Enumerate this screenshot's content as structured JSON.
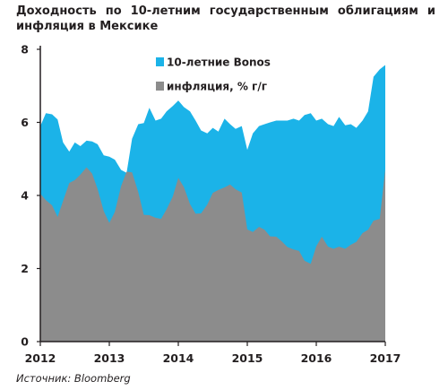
{
  "title": "Доходность по 10-летним государственным облигациям и инфляция в Мексике",
  "source": "Источник: Bloomberg",
  "chart_data": {
    "type": "area",
    "ylim": [
      0,
      8
    ],
    "y_ticks": [
      0,
      2,
      4,
      6,
      8
    ],
    "xlim": [
      2012,
      2017
    ],
    "x_ticks": [
      2012,
      2013,
      2014,
      2015,
      2016,
      2017
    ],
    "grid": false,
    "legend_position": "top-right",
    "series": [
      {
        "name": "10-летние Bonos",
        "color": "#1bb3e8",
        "points": [
          [
            2012.0,
            5.9
          ],
          [
            2012.08,
            6.25
          ],
          [
            2012.17,
            6.22
          ],
          [
            2012.25,
            6.08
          ],
          [
            2012.33,
            5.45
          ],
          [
            2012.42,
            5.2
          ],
          [
            2012.5,
            5.45
          ],
          [
            2012.58,
            5.35
          ],
          [
            2012.67,
            5.5
          ],
          [
            2012.75,
            5.48
          ],
          [
            2012.83,
            5.4
          ],
          [
            2012.92,
            5.1
          ],
          [
            2013.0,
            5.06
          ],
          [
            2013.08,
            4.98
          ],
          [
            2013.17,
            4.7
          ],
          [
            2013.25,
            4.62
          ],
          [
            2013.33,
            5.55
          ],
          [
            2013.42,
            5.95
          ],
          [
            2013.5,
            5.98
          ],
          [
            2013.58,
            6.4
          ],
          [
            2013.67,
            6.05
          ],
          [
            2013.75,
            6.1
          ],
          [
            2013.83,
            6.3
          ],
          [
            2013.92,
            6.45
          ],
          [
            2014.0,
            6.6
          ],
          [
            2014.08,
            6.42
          ],
          [
            2014.17,
            6.3
          ],
          [
            2014.25,
            6.05
          ],
          [
            2014.33,
            5.78
          ],
          [
            2014.42,
            5.7
          ],
          [
            2014.5,
            5.85
          ],
          [
            2014.58,
            5.75
          ],
          [
            2014.67,
            6.1
          ],
          [
            2014.75,
            5.95
          ],
          [
            2014.83,
            5.82
          ],
          [
            2014.92,
            5.9
          ],
          [
            2015.0,
            5.25
          ],
          [
            2015.08,
            5.7
          ],
          [
            2015.17,
            5.9
          ],
          [
            2015.25,
            5.95
          ],
          [
            2015.33,
            6.0
          ],
          [
            2015.42,
            6.05
          ],
          [
            2015.5,
            6.05
          ],
          [
            2015.58,
            6.05
          ],
          [
            2015.67,
            6.1
          ],
          [
            2015.75,
            6.05
          ],
          [
            2015.83,
            6.2
          ],
          [
            2015.92,
            6.25
          ],
          [
            2016.0,
            6.05
          ],
          [
            2016.08,
            6.1
          ],
          [
            2016.17,
            5.95
          ],
          [
            2016.25,
            5.9
          ],
          [
            2016.33,
            6.15
          ],
          [
            2016.42,
            5.92
          ],
          [
            2016.5,
            5.95
          ],
          [
            2016.58,
            5.85
          ],
          [
            2016.67,
            6.05
          ],
          [
            2016.75,
            6.3
          ],
          [
            2016.83,
            7.25
          ],
          [
            2016.92,
            7.45
          ],
          [
            2017.0,
            7.57
          ]
        ]
      },
      {
        "name": "инфляция, % г/г",
        "color": "#8c8c8c",
        "points": [
          [
            2012.0,
            4.05
          ],
          [
            2012.08,
            3.87
          ],
          [
            2012.17,
            3.73
          ],
          [
            2012.25,
            3.41
          ],
          [
            2012.33,
            3.85
          ],
          [
            2012.42,
            4.34
          ],
          [
            2012.5,
            4.42
          ],
          [
            2012.58,
            4.57
          ],
          [
            2012.67,
            4.77
          ],
          [
            2012.75,
            4.6
          ],
          [
            2012.83,
            4.18
          ],
          [
            2012.92,
            3.57
          ],
          [
            2013.0,
            3.25
          ],
          [
            2013.08,
            3.55
          ],
          [
            2013.17,
            4.25
          ],
          [
            2013.25,
            4.65
          ],
          [
            2013.33,
            4.63
          ],
          [
            2013.42,
            4.09
          ],
          [
            2013.5,
            3.47
          ],
          [
            2013.58,
            3.46
          ],
          [
            2013.67,
            3.39
          ],
          [
            2013.75,
            3.36
          ],
          [
            2013.83,
            3.62
          ],
          [
            2013.92,
            3.97
          ],
          [
            2014.0,
            4.48
          ],
          [
            2014.08,
            4.23
          ],
          [
            2014.17,
            3.76
          ],
          [
            2014.25,
            3.5
          ],
          [
            2014.33,
            3.51
          ],
          [
            2014.42,
            3.75
          ],
          [
            2014.5,
            4.07
          ],
          [
            2014.58,
            4.15
          ],
          [
            2014.67,
            4.22
          ],
          [
            2014.75,
            4.3
          ],
          [
            2014.83,
            4.17
          ],
          [
            2014.92,
            4.08
          ],
          [
            2015.0,
            3.07
          ],
          [
            2015.08,
            3.0
          ],
          [
            2015.17,
            3.14
          ],
          [
            2015.25,
            3.06
          ],
          [
            2015.33,
            2.88
          ],
          [
            2015.42,
            2.87
          ],
          [
            2015.5,
            2.74
          ],
          [
            2015.58,
            2.59
          ],
          [
            2015.67,
            2.52
          ],
          [
            2015.75,
            2.48
          ],
          [
            2015.83,
            2.21
          ],
          [
            2015.92,
            2.13
          ],
          [
            2016.0,
            2.61
          ],
          [
            2016.08,
            2.87
          ],
          [
            2016.17,
            2.6
          ],
          [
            2016.25,
            2.54
          ],
          [
            2016.33,
            2.6
          ],
          [
            2016.42,
            2.54
          ],
          [
            2016.5,
            2.65
          ],
          [
            2016.58,
            2.73
          ],
          [
            2016.67,
            2.97
          ],
          [
            2016.75,
            3.06
          ],
          [
            2016.83,
            3.31
          ],
          [
            2016.92,
            3.36
          ],
          [
            2017.0,
            4.72
          ]
        ]
      }
    ]
  }
}
